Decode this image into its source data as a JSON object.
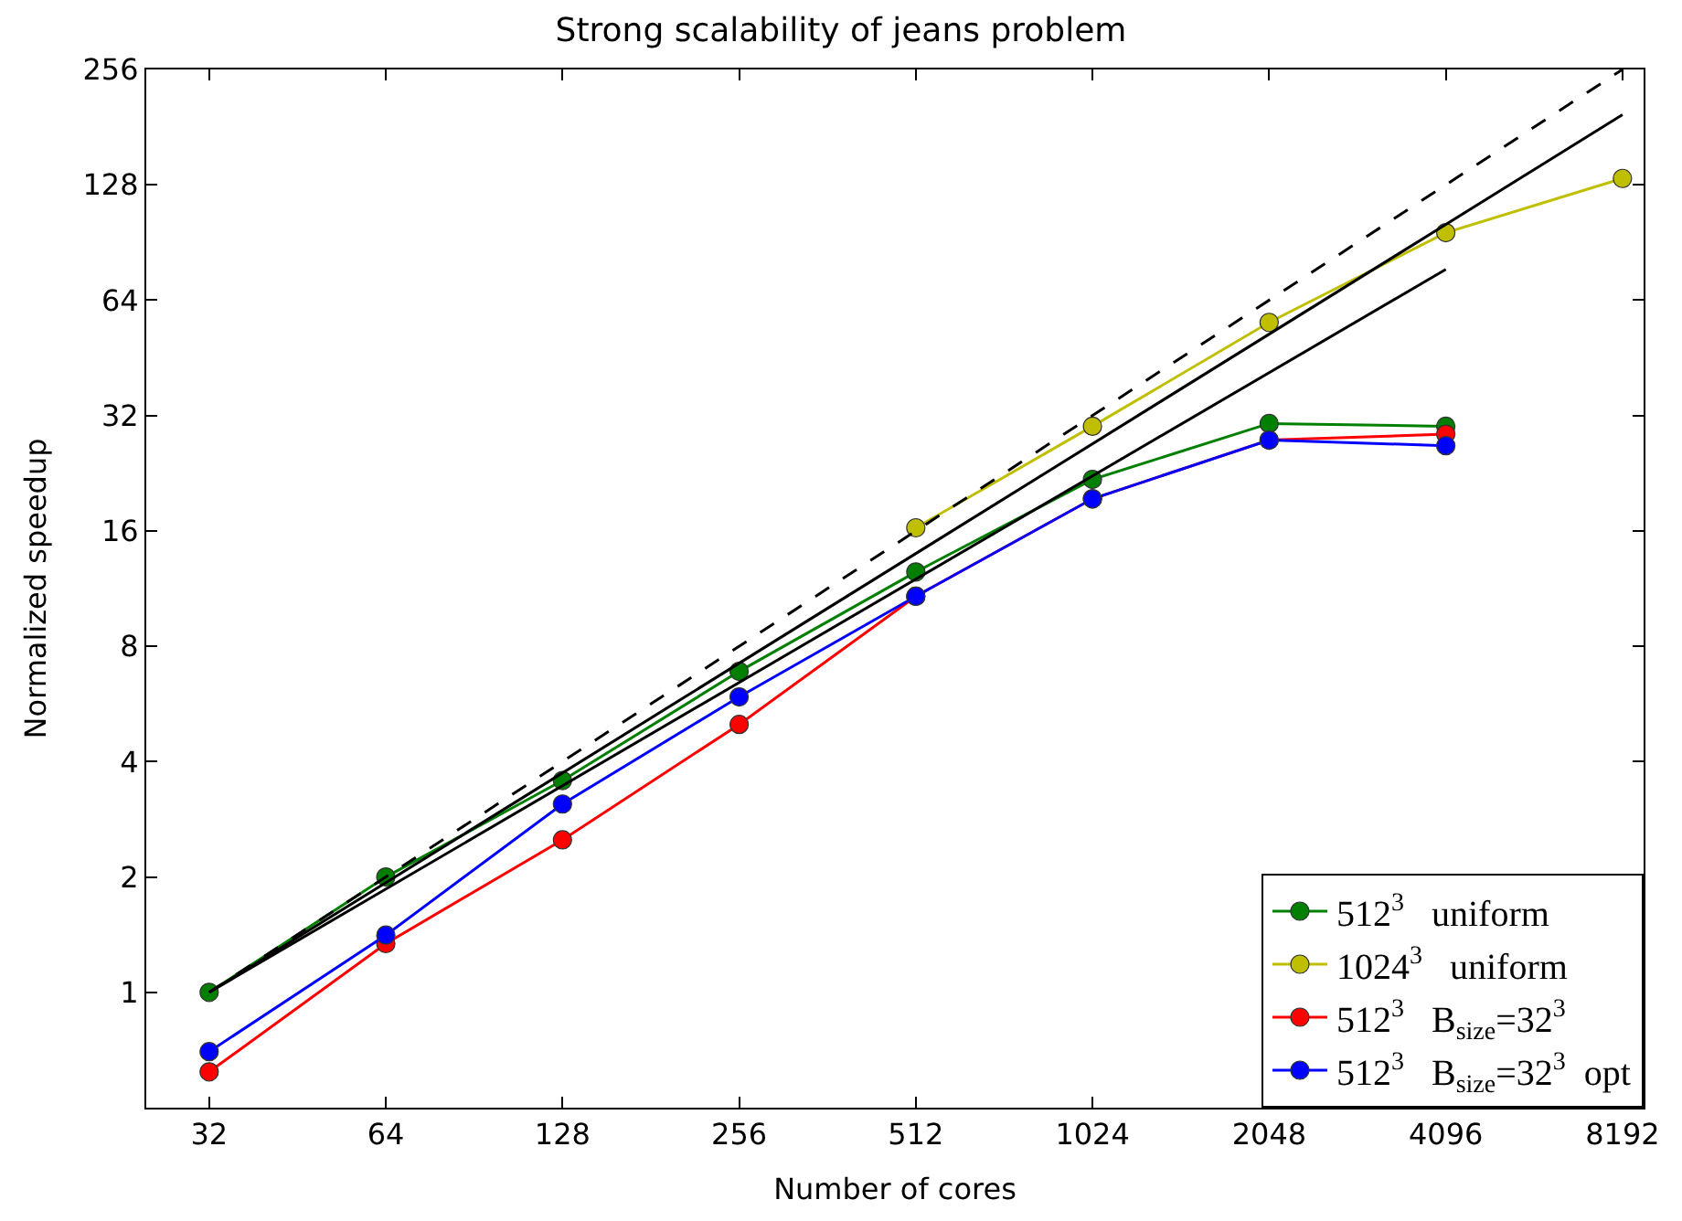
{
  "chart_data": {
    "type": "line",
    "title": "Strong scalability of jeans problem",
    "xlabel": "Number of cores",
    "ylabel": "Normalized speedup",
    "log": "xy",
    "legend": "bottom right",
    "marker": "circle",
    "xlim": [
      25,
      8900
    ],
    "xticks": [
      32,
      64,
      128,
      256,
      512,
      1024,
      2048,
      4096,
      8192
    ],
    "ylim": [
      0.5,
      256
    ],
    "yticks": [
      1,
      2,
      4,
      8,
      16,
      32,
      64,
      128,
      256
    ],
    "series": [
      {
        "name": "512$^{3}$   uniform",
        "color": "#007f00",
        "x": [
          32,
          64,
          128,
          256,
          512,
          1024,
          2048,
          4096
        ],
        "values": [
          1.0,
          2.0,
          3.57,
          6.88,
          12.5,
          21.8,
          30.5,
          30
        ]
      },
      {
        "name": "1024$^{3}$   uniform",
        "color": "#bfbf00",
        "x": [
          512,
          1024,
          2048,
          4096,
          8192
        ],
        "values": [
          16.3,
          30,
          56,
          96,
          133
        ]
      },
      {
        "name": "512$^{3}$   B$_{size}$=32$^{3}$",
        "color": "#ff0000",
        "x": [
          32,
          64,
          128,
          256,
          512,
          1024,
          2048,
          4096
        ],
        "values": [
          0.62,
          1.34,
          2.5,
          5.0,
          10.8,
          19.4,
          27.6,
          28.6
        ]
      },
      {
        "name": "512$^{3}$   B$_{size}$=32$^{3}$  opt",
        "color": "#0000ff",
        "x": [
          32,
          64,
          128,
          256,
          512,
          1024,
          2048,
          4096
        ],
        "values": [
          0.7,
          1.41,
          3.1,
          5.9,
          10.8,
          19.4,
          27.6,
          26.7
        ]
      },
      {
        "color": "#000000",
        "marker": "none",
        "line_style": "dashed",
        "x": [
          32,
          8192
        ],
        "values": [
          1,
          256
        ]
      },
      {
        "color": "#000000",
        "marker": "none",
        "line_style": "solid",
        "x": [
          32,
          8192
        ],
        "values": [
          1,
          195
        ]
      },
      {
        "color": "#000000",
        "marker": "none",
        "line_style": "solid",
        "x": [
          32,
          4096
        ],
        "values": [
          1,
          77
        ]
      }
    ]
  }
}
